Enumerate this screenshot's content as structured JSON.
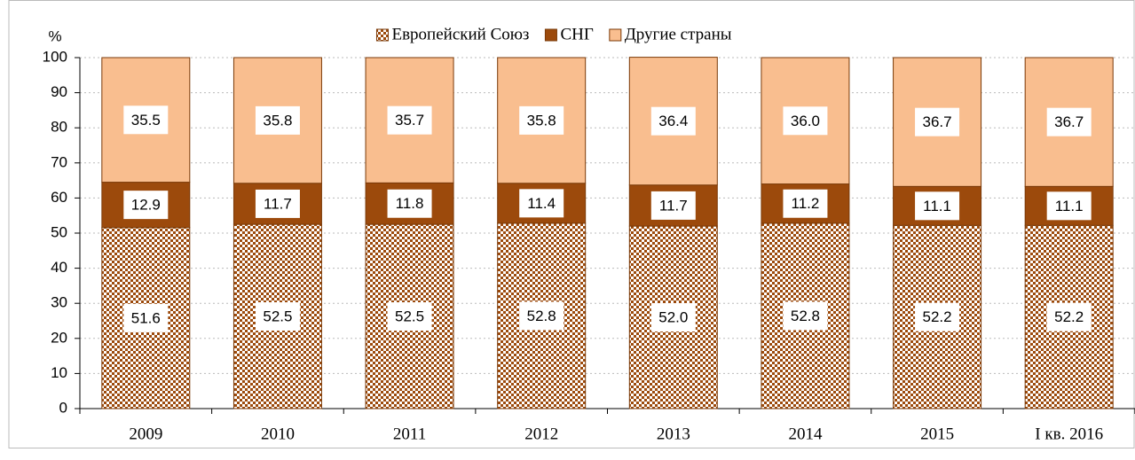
{
  "chart_data": {
    "type": "stacked_bar",
    "y_label": "%",
    "categories": [
      "2009",
      "2010",
      "2011",
      "2012",
      "2013",
      "2014",
      "2015",
      "I кв. 2016"
    ],
    "series": [
      {
        "name": "Европейский Союз",
        "color": "#9c4a0c",
        "pattern": "checker",
        "values": [
          51.6,
          52.5,
          52.5,
          52.8,
          52.0,
          52.8,
          52.2,
          52.2
        ],
        "value_labels": [
          "51.6",
          "52.5",
          "52.5",
          "52.8",
          "52.0",
          "52.8",
          "52.2",
          "52.2"
        ]
      },
      {
        "name": "СНГ",
        "color": "#9c4a0c",
        "values": [
          12.9,
          11.7,
          11.8,
          11.4,
          11.7,
          11.2,
          11.1,
          11.1
        ],
        "value_labels": [
          "12.9",
          "11.7",
          "11.8",
          "11.4",
          "11.7",
          "11.2",
          "11.1",
          "11.1"
        ]
      },
      {
        "name": "Другие страны",
        "color": "#f9be8f",
        "values": [
          35.5,
          35.8,
          35.7,
          35.8,
          36.4,
          36.0,
          36.7,
          36.7
        ],
        "value_labels": [
          "35.5",
          "35.8",
          "35.7",
          "35.8",
          "36.4",
          "36.0",
          "36.7",
          "36.7"
        ]
      }
    ],
    "ylim": [
      0,
      100
    ],
    "yticks": [
      0,
      10,
      20,
      30,
      40,
      50,
      60,
      70,
      80,
      90,
      100
    ],
    "grid": true,
    "legend": "top"
  }
}
